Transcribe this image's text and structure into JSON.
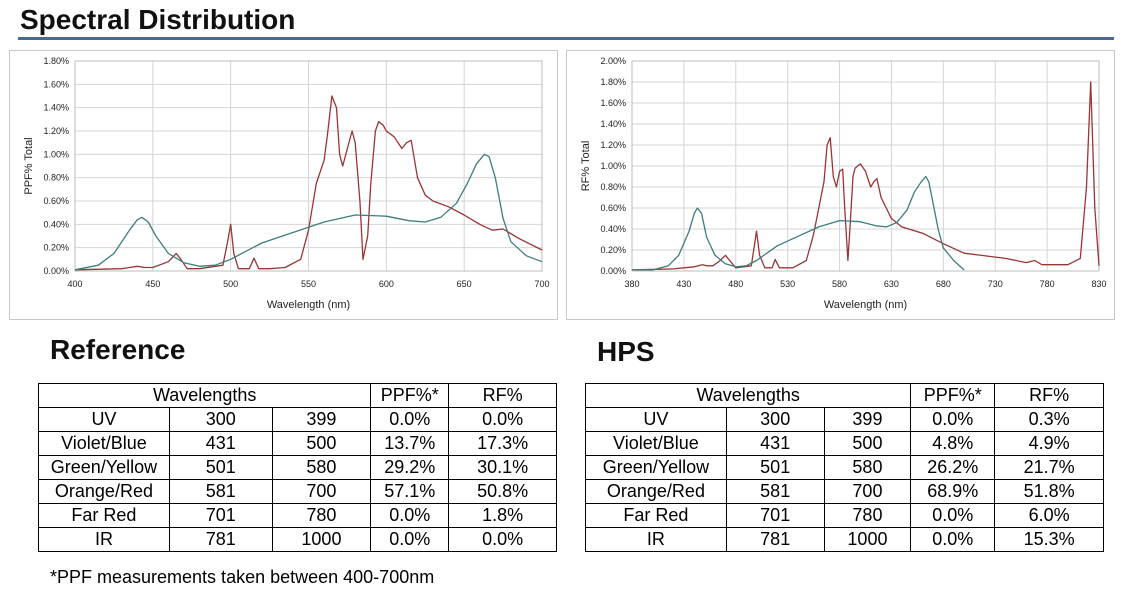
{
  "page_title": "Spectral Distribution",
  "footnote": "*PPF measurements taken between 400-700nm",
  "colors": {
    "red_series": "#9b3434",
    "teal_series": "#3c7d7d",
    "grid": "#d4d4d4",
    "rule": "#4a6a96"
  },
  "chart_data": [
    {
      "type": "line",
      "xlabel": "Wavelength (nm)",
      "ylabel": "PPF% Total",
      "xlim": [
        400,
        700
      ],
      "ylim": [
        0,
        1.8
      ],
      "xticks": [
        400,
        450,
        500,
        550,
        600,
        650,
        700
      ],
      "xtick_labels": [
        "400",
        "450",
        "500",
        "550",
        "600",
        "650",
        "700"
      ],
      "yticks": [
        0,
        0.2,
        0.4,
        0.6,
        0.8,
        1.0,
        1.2,
        1.4,
        1.6,
        1.8
      ],
      "ytick_labels": [
        "0.00%",
        "0.20%",
        "0.40%",
        "0.60%",
        "0.80%",
        "1.00%",
        "1.20%",
        "1.40%",
        "1.60%",
        "1.80%"
      ],
      "series": [
        {
          "name": "HPS",
          "color": "#9b3434",
          "x": [
            400,
            430,
            440,
            445,
            450,
            460,
            465,
            468,
            472,
            480,
            495,
            498,
            500,
            502,
            505,
            512,
            515,
            518,
            525,
            535,
            545,
            550,
            555,
            560,
            562,
            565,
            568,
            570,
            572,
            575,
            578,
            580,
            583,
            585,
            588,
            590,
            593,
            595,
            598,
            600,
            605,
            610,
            613,
            616,
            620,
            625,
            630,
            640,
            650,
            660,
            668,
            675,
            685,
            700
          ],
          "y": [
            0.01,
            0.02,
            0.04,
            0.03,
            0.03,
            0.08,
            0.15,
            0.1,
            0.02,
            0.02,
            0.05,
            0.25,
            0.4,
            0.15,
            0.02,
            0.02,
            0.11,
            0.02,
            0.02,
            0.03,
            0.1,
            0.35,
            0.75,
            0.95,
            1.15,
            1.5,
            1.4,
            1.0,
            0.9,
            1.05,
            1.2,
            1.1,
            0.6,
            0.1,
            0.3,
            0.75,
            1.2,
            1.28,
            1.25,
            1.2,
            1.15,
            1.05,
            1.1,
            1.12,
            0.8,
            0.65,
            0.6,
            0.55,
            0.48,
            0.4,
            0.35,
            0.36,
            0.28,
            0.18
          ]
        },
        {
          "name": "Reference",
          "color": "#3c7d7d",
          "x": [
            400,
            415,
            425,
            435,
            440,
            443,
            447,
            452,
            460,
            470,
            480,
            490,
            500,
            520,
            540,
            560,
            580,
            600,
            615,
            625,
            635,
            645,
            652,
            658,
            663,
            666,
            670,
            675,
            680,
            690,
            700
          ],
          "y": [
            0.01,
            0.05,
            0.15,
            0.35,
            0.44,
            0.46,
            0.42,
            0.3,
            0.15,
            0.07,
            0.04,
            0.05,
            0.1,
            0.24,
            0.33,
            0.42,
            0.48,
            0.47,
            0.43,
            0.42,
            0.46,
            0.58,
            0.75,
            0.92,
            1.0,
            0.98,
            0.8,
            0.45,
            0.25,
            0.13,
            0.08
          ]
        }
      ]
    },
    {
      "type": "line",
      "xlabel": "Wavelength (nm)",
      "ylabel": "RF% Total",
      "xlim": [
        380,
        830
      ],
      "ylim": [
        0,
        2.0
      ],
      "xticks": [
        380,
        430,
        480,
        530,
        580,
        630,
        680,
        730,
        780,
        830
      ],
      "xtick_labels": [
        "380",
        "430",
        "480",
        "530",
        "580",
        "630",
        "680",
        "730",
        "780",
        "830"
      ],
      "yticks": [
        0,
        0.2,
        0.4,
        0.6,
        0.8,
        1.0,
        1.2,
        1.4,
        1.6,
        1.8,
        2.0
      ],
      "ytick_labels": [
        "0.00%",
        "0.20%",
        "0.40%",
        "0.60%",
        "0.80%",
        "1.00%",
        "1.20%",
        "1.40%",
        "1.60%",
        "1.80%",
        "2.00%"
      ],
      "series": [
        {
          "name": "HPS",
          "color": "#9b3434",
          "x": [
            380,
            420,
            430,
            440,
            448,
            452,
            458,
            465,
            470,
            480,
            495,
            498,
            500,
            503,
            508,
            515,
            518,
            522,
            535,
            548,
            555,
            560,
            565,
            568,
            571,
            574,
            577,
            580,
            583,
            585,
            588,
            590,
            593,
            595,
            600,
            605,
            610,
            613,
            616,
            620,
            630,
            640,
            660,
            680,
            700,
            740,
            760,
            768,
            775,
            800,
            812,
            818,
            822,
            826,
            830
          ],
          "y": [
            0.01,
            0.02,
            0.03,
            0.04,
            0.06,
            0.05,
            0.05,
            0.1,
            0.15,
            0.03,
            0.05,
            0.25,
            0.38,
            0.15,
            0.03,
            0.03,
            0.11,
            0.03,
            0.03,
            0.1,
            0.35,
            0.6,
            0.85,
            1.2,
            1.27,
            0.9,
            0.8,
            0.95,
            0.97,
            0.6,
            0.1,
            0.4,
            0.9,
            0.98,
            1.02,
            0.95,
            0.8,
            0.85,
            0.88,
            0.7,
            0.5,
            0.42,
            0.36,
            0.26,
            0.17,
            0.12,
            0.08,
            0.1,
            0.06,
            0.06,
            0.12,
            0.8,
            1.8,
            0.6,
            0.05
          ]
        },
        {
          "name": "Reference",
          "color": "#3c7d7d",
          "x": [
            380,
            400,
            415,
            425,
            435,
            440,
            443,
            447,
            452,
            460,
            470,
            480,
            490,
            500,
            520,
            540,
            560,
            580,
            600,
            615,
            625,
            635,
            645,
            652,
            658,
            663,
            666,
            670,
            675,
            680,
            690,
            700
          ],
          "y": [
            0.01,
            0.01,
            0.05,
            0.15,
            0.38,
            0.55,
            0.6,
            0.55,
            0.32,
            0.15,
            0.07,
            0.04,
            0.05,
            0.1,
            0.24,
            0.33,
            0.42,
            0.48,
            0.47,
            0.43,
            0.42,
            0.46,
            0.58,
            0.75,
            0.84,
            0.9,
            0.85,
            0.65,
            0.4,
            0.22,
            0.1,
            0.01
          ]
        }
      ]
    }
  ],
  "reference": {
    "heading": "Reference",
    "header": {
      "wavelengths": "Wavelengths",
      "ppf": "PPF%*",
      "rf": "RF%"
    },
    "rows": [
      {
        "band": "UV",
        "start": "300",
        "end": "399",
        "ppf": "0.0%",
        "rf": "0.0%"
      },
      {
        "band": "Violet/Blue",
        "start": "431",
        "end": "500",
        "ppf": "13.7%",
        "rf": "17.3%"
      },
      {
        "band": "Green/Yellow",
        "start": "501",
        "end": "580",
        "ppf": "29.2%",
        "rf": "30.1%"
      },
      {
        "band": "Orange/Red",
        "start": "581",
        "end": "700",
        "ppf": "57.1%",
        "rf": "50.8%"
      },
      {
        "band": "Far Red",
        "start": "701",
        "end": "780",
        "ppf": "0.0%",
        "rf": "1.8%"
      },
      {
        "band": "IR",
        "start": "781",
        "end": "1000",
        "ppf": "0.0%",
        "rf": "0.0%"
      }
    ]
  },
  "hps": {
    "heading": "HPS",
    "header": {
      "wavelengths": "Wavelengths",
      "ppf": "PPF%*",
      "rf": "RF%"
    },
    "rows": [
      {
        "band": "UV",
        "start": "300",
        "end": "399",
        "ppf": "0.0%",
        "rf": "0.3%"
      },
      {
        "band": "Violet/Blue",
        "start": "431",
        "end": "500",
        "ppf": "4.8%",
        "rf": "4.9%"
      },
      {
        "band": "Green/Yellow",
        "start": "501",
        "end": "580",
        "ppf": "26.2%",
        "rf": "21.7%"
      },
      {
        "band": "Orange/Red",
        "start": "581",
        "end": "700",
        "ppf": "68.9%",
        "rf": "51.8%"
      },
      {
        "band": "Far Red",
        "start": "701",
        "end": "780",
        "ppf": "0.0%",
        "rf": "6.0%"
      },
      {
        "band": "IR",
        "start": "781",
        "end": "1000",
        "ppf": "0.0%",
        "rf": "15.3%"
      }
    ]
  }
}
